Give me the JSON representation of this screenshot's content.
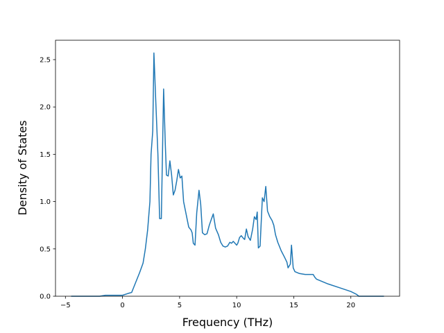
{
  "chart_data": {
    "type": "line",
    "x_label": "Frequency (THz)",
    "y_label": "Density of States",
    "xlim": [
      -5.87,
      24.27
    ],
    "ylim": [
      0,
      2.705
    ],
    "xticks": [
      {
        "value": -5,
        "label": "−5"
      },
      0,
      5,
      10,
      15,
      20
    ],
    "yticks": [
      {
        "value": 0,
        "label": "0.0"
      },
      0.5,
      {
        "value": 1,
        "label": "1.0"
      },
      1.5,
      {
        "value": 2,
        "label": "2.0"
      },
      2.5
    ],
    "x": [
      -4.5,
      -2,
      -1.5,
      -1,
      0,
      0.5,
      0.8,
      1.0,
      1.5,
      1.8,
      2.0,
      2.2,
      2.4,
      2.5,
      2.65,
      2.75,
      2.9,
      3.1,
      3.25,
      3.4,
      3.6,
      3.75,
      3.85,
      4.0,
      4.15,
      4.3,
      4.45,
      4.6,
      4.75,
      4.9,
      5.05,
      5.2,
      5.35,
      5.6,
      5.8,
      6.0,
      6.1,
      6.2,
      6.35,
      6.5,
      6.7,
      6.85,
      7.0,
      7.2,
      7.4,
      7.6,
      7.8,
      7.95,
      8.15,
      8.4,
      8.6,
      8.8,
      9.0,
      9.2,
      9.4,
      9.55,
      9.7,
      9.85,
      10.0,
      10.1,
      10.25,
      10.4,
      10.6,
      10.7,
      10.85,
      11.0,
      11.2,
      11.4,
      11.55,
      11.7,
      11.8,
      11.9,
      12.05,
      12.25,
      12.4,
      12.55,
      12.7,
      12.9,
      13.1,
      13.25,
      13.4,
      13.6,
      13.9,
      14.2,
      14.4,
      14.5,
      14.7,
      14.8,
      14.95,
      15.1,
      15.5,
      16.0,
      16.5,
      16.7,
      16.85,
      17.0,
      18.0,
      19.0,
      20.0,
      20.5,
      20.7,
      22.9
    ],
    "series": [
      {
        "color": "#1f77b4",
        "values": [
          0,
          0,
          0.01,
          0.01,
          0.01,
          0.03,
          0.04,
          0.1,
          0.25,
          0.35,
          0.5,
          0.7,
          1.0,
          1.5,
          1.75,
          2.57,
          2.1,
          1.5,
          0.82,
          0.82,
          2.19,
          1.6,
          1.28,
          1.27,
          1.43,
          1.28,
          1.07,
          1.12,
          1.22,
          1.34,
          1.25,
          1.27,
          1.0,
          0.85,
          0.73,
          0.7,
          0.67,
          0.56,
          0.54,
          0.88,
          1.12,
          0.97,
          0.67,
          0.65,
          0.66,
          0.75,
          0.82,
          0.87,
          0.72,
          0.65,
          0.57,
          0.53,
          0.52,
          0.53,
          0.57,
          0.56,
          0.58,
          0.56,
          0.54,
          0.56,
          0.62,
          0.64,
          0.61,
          0.6,
          0.71,
          0.63,
          0.59,
          0.71,
          0.84,
          0.81,
          0.89,
          0.51,
          0.53,
          1.04,
          1.0,
          1.16,
          0.9,
          0.84,
          0.8,
          0.75,
          0.65,
          0.57,
          0.48,
          0.41,
          0.36,
          0.3,
          0.34,
          0.54,
          0.3,
          0.26,
          0.24,
          0.23,
          0.23,
          0.23,
          0.2,
          0.18,
          0.13,
          0.09,
          0.05,
          0.02,
          0.0,
          0
        ]
      }
    ]
  }
}
